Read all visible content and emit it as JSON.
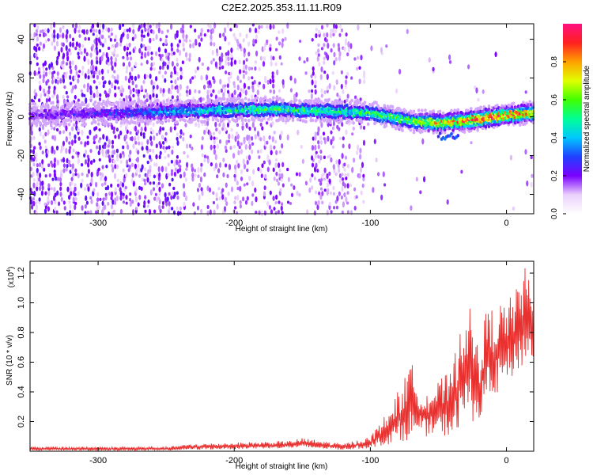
{
  "title": "C2E2.2025.353.11.11.R09",
  "chart_data": [
    {
      "type": "heatmap",
      "xlabel": "Height of straight line (km)",
      "ylabel": "Frequency (Hz)",
      "xlim": [
        -350,
        20
      ],
      "ylim": [
        -50,
        48
      ],
      "xticks": [
        -300,
        -200,
        -100,
        0
      ],
      "yticks": [
        -40,
        -20,
        0,
        20,
        40
      ],
      "colorbar": {
        "label": "Normalized spectral amplitude",
        "range": [
          0,
          1
        ],
        "ticks": [
          "0.0",
          "0.2",
          "0.4",
          "0.6",
          "0.8"
        ],
        "tick_values": [
          0.0,
          0.2,
          0.4,
          0.6,
          0.8
        ]
      },
      "ridge": {
        "description_points": [
          {
            "x": -350,
            "freq": 1,
            "amp": 0.2
          },
          {
            "x": -300,
            "freq": 2,
            "amp": 0.25
          },
          {
            "x": -240,
            "freq": 3,
            "amp": 0.4
          },
          {
            "x": -170,
            "freq": 4,
            "amp": 0.55
          },
          {
            "x": -130,
            "freq": 3,
            "amp": 0.5
          },
          {
            "x": -100,
            "freq": 2,
            "amp": 0.55
          },
          {
            "x": -70,
            "freq": -2,
            "amp": 0.6
          },
          {
            "x": -50,
            "freq": -3,
            "amp": 0.75
          },
          {
            "x": -30,
            "freq": -2,
            "amp": 0.85
          },
          {
            "x": -10,
            "freq": 0,
            "amp": 0.9
          },
          {
            "x": 0,
            "freq": 1,
            "amp": 0.9
          },
          {
            "x": 20,
            "freq": 2,
            "amp": 0.8
          }
        ]
      }
    },
    {
      "type": "line",
      "xlabel": "Height of straight line (km)",
      "ylabel": "SNR (10 * v/v)",
      "multiplier": "(x10^4)",
      "multiplier_base": "(x10",
      "multiplier_exp": "4",
      "multiplier_close": ")",
      "xlim": [
        -350,
        20
      ],
      "ylim": [
        0,
        1.28
      ],
      "xticks": [
        -300,
        -200,
        -100,
        0
      ],
      "yticks": [
        0.2,
        0.4,
        0.6,
        0.8,
        1.0,
        1.2
      ],
      "ytick_labels": [
        "0.2",
        "0.4",
        "0.6",
        "0.8",
        "1.0",
        "1.2"
      ],
      "color": "#e8312f",
      "envelope": [
        {
          "x": -350,
          "lo": 0.005,
          "hi": 0.03
        },
        {
          "x": -250,
          "lo": 0.005,
          "hi": 0.03
        },
        {
          "x": -230,
          "lo": 0.01,
          "hi": 0.05
        },
        {
          "x": -160,
          "lo": 0.02,
          "hi": 0.07
        },
        {
          "x": -150,
          "lo": 0.02,
          "hi": 0.09
        },
        {
          "x": -120,
          "lo": 0.01,
          "hi": 0.05
        },
        {
          "x": -100,
          "lo": 0.02,
          "hi": 0.1
        },
        {
          "x": -85,
          "lo": 0.05,
          "hi": 0.3
        },
        {
          "x": -70,
          "lo": 0.08,
          "hi": 0.6
        },
        {
          "x": -60,
          "lo": 0.1,
          "hi": 0.4
        },
        {
          "x": -40,
          "lo": 0.1,
          "hi": 0.55
        },
        {
          "x": -30,
          "lo": 0.2,
          "hi": 1.08
        },
        {
          "x": -20,
          "lo": 0.2,
          "hi": 0.7
        },
        {
          "x": -15,
          "lo": 0.3,
          "hi": 0.95
        },
        {
          "x": -5,
          "lo": 0.4,
          "hi": 1.0
        },
        {
          "x": 5,
          "lo": 0.5,
          "hi": 1.05
        },
        {
          "x": 15,
          "lo": 0.6,
          "hi": 1.27
        },
        {
          "x": 20,
          "lo": 0.6,
          "hi": 1.05
        }
      ]
    }
  ]
}
